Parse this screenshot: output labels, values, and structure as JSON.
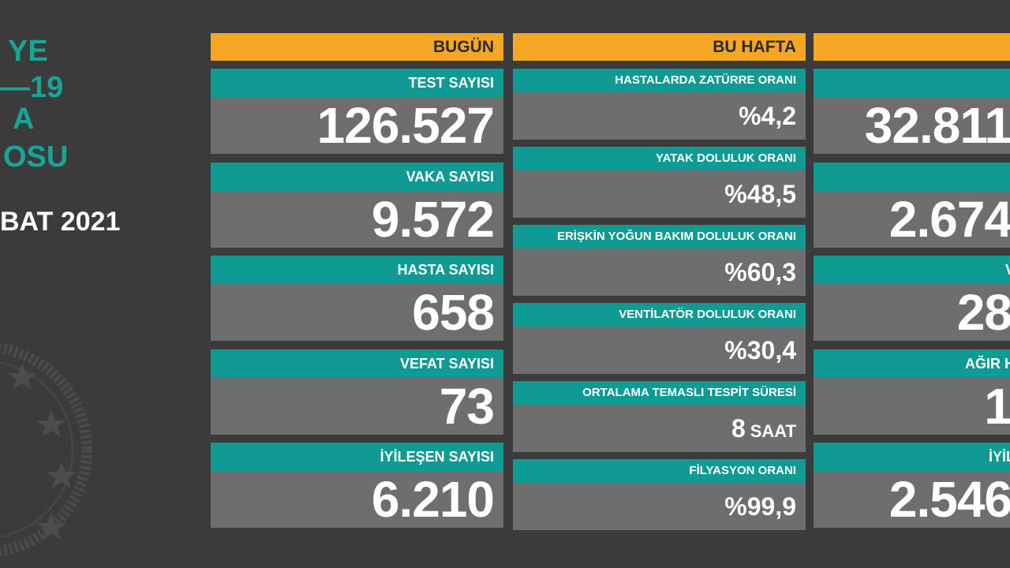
{
  "left": {
    "lines": [
      "YE",
      "—19",
      "A",
      "OSU"
    ],
    "date": "BAT 2021"
  },
  "columns": [
    {
      "header": "BUGÜN",
      "items": [
        {
          "label": "TEST SAYISI",
          "value": "126.527"
        },
        {
          "label": "VAKA SAYISI",
          "value": "9.572"
        },
        {
          "label": "HASTA SAYISI",
          "value": "658"
        },
        {
          "label": "VEFAT SAYISI",
          "value": "73"
        },
        {
          "label": "İYİLEŞEN SAYISI",
          "value": "6.210"
        }
      ]
    },
    {
      "header": "BU HAFTA",
      "items": [
        {
          "label": "HASTALARDA ZATÜRRE ORANI",
          "value": "%4,2"
        },
        {
          "label": "YATAK DOLULUK ORANI",
          "value": "%48,5"
        },
        {
          "label": "ERİŞKİN YOĞUN BAKIM DOLULUK ORANI",
          "value": "%60,3"
        },
        {
          "label": "VENTİLATÖR DOLULUK ORANI",
          "value": "%30,4"
        },
        {
          "label": "ORTALAMA TEMASLI TESPİT SÜRESİ",
          "value": "8",
          "unit": "SAAT"
        },
        {
          "label": "FİLYASYON ORANI",
          "value": "%99,9"
        }
      ]
    },
    {
      "items": [
        {
          "value": "32.811"
        },
        {
          "value": "2.674"
        },
        {
          "label": "V",
          "value": "28"
        },
        {
          "label": "AĞIR H",
          "value": "1"
        },
        {
          "label": "İYİL",
          "value": "2.546"
        }
      ]
    }
  ]
}
